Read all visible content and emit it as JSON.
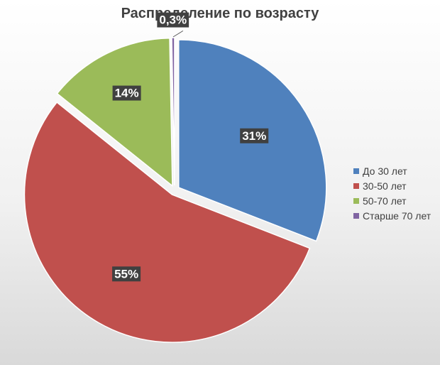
{
  "chart_data": {
    "type": "pie",
    "title": "Распределение по возрасту",
    "legend_position": "right",
    "categories": [
      "До 30 лет",
      "30-50 лет",
      "50-70 лет",
      "Старше 70 лет"
    ],
    "values": [
      31,
      55,
      14,
      0.3
    ],
    "data_labels": [
      "31%",
      "55%",
      "14%",
      "0,3%"
    ],
    "colors": [
      "#4F81BD",
      "#C0504D",
      "#9BBB59",
      "#8064A2"
    ],
    "exploded": true
  }
}
